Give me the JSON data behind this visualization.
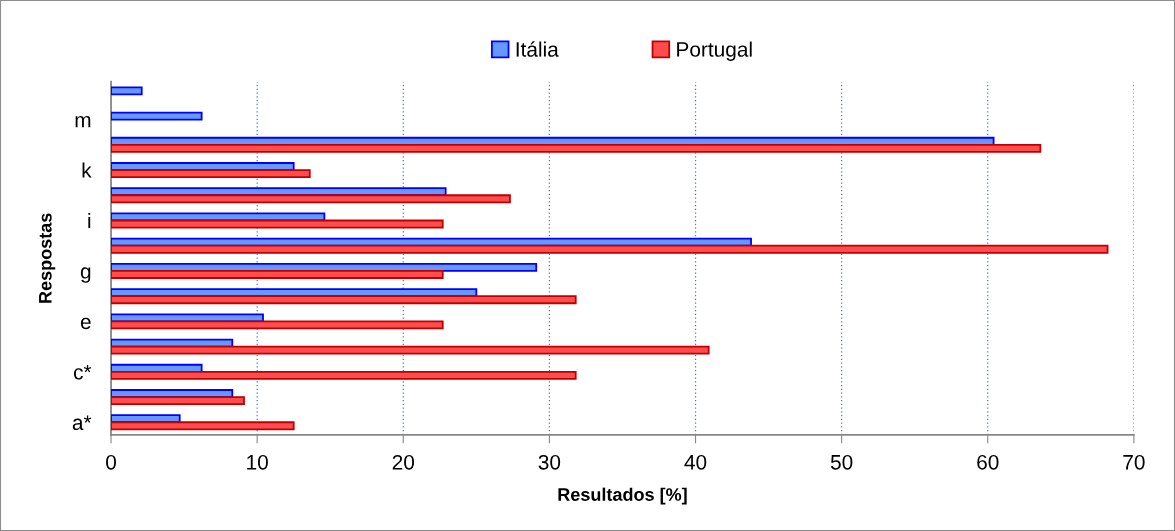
{
  "chart_data": {
    "type": "bar",
    "orientation": "horizontal",
    "xlabel": "Resultados [%]",
    "ylabel": "Respostas",
    "categories": [
      null,
      "m",
      null,
      "k",
      null,
      "i",
      null,
      "g",
      null,
      "e",
      null,
      "c*",
      null,
      "a*"
    ],
    "series": [
      {
        "name": "Itália",
        "color": "#6699ff",
        "values": [
          2.1,
          6.2,
          60.4,
          12.5,
          22.9,
          14.6,
          43.8,
          29.1,
          25.0,
          10.4,
          8.3,
          6.2,
          8.3,
          4.7
        ]
      },
      {
        "name": "Portugal",
        "color": "#ff4d4d",
        "values": [
          null,
          null,
          63.6,
          13.6,
          27.3,
          22.7,
          68.2,
          22.7,
          31.8,
          22.7,
          40.9,
          31.8,
          9.1,
          12.5
        ]
      }
    ],
    "xlim": [
      0,
      70
    ],
    "xticks": [
      0,
      10,
      20,
      30,
      40,
      50,
      60,
      70
    ],
    "grid": "x",
    "legend": "top"
  }
}
